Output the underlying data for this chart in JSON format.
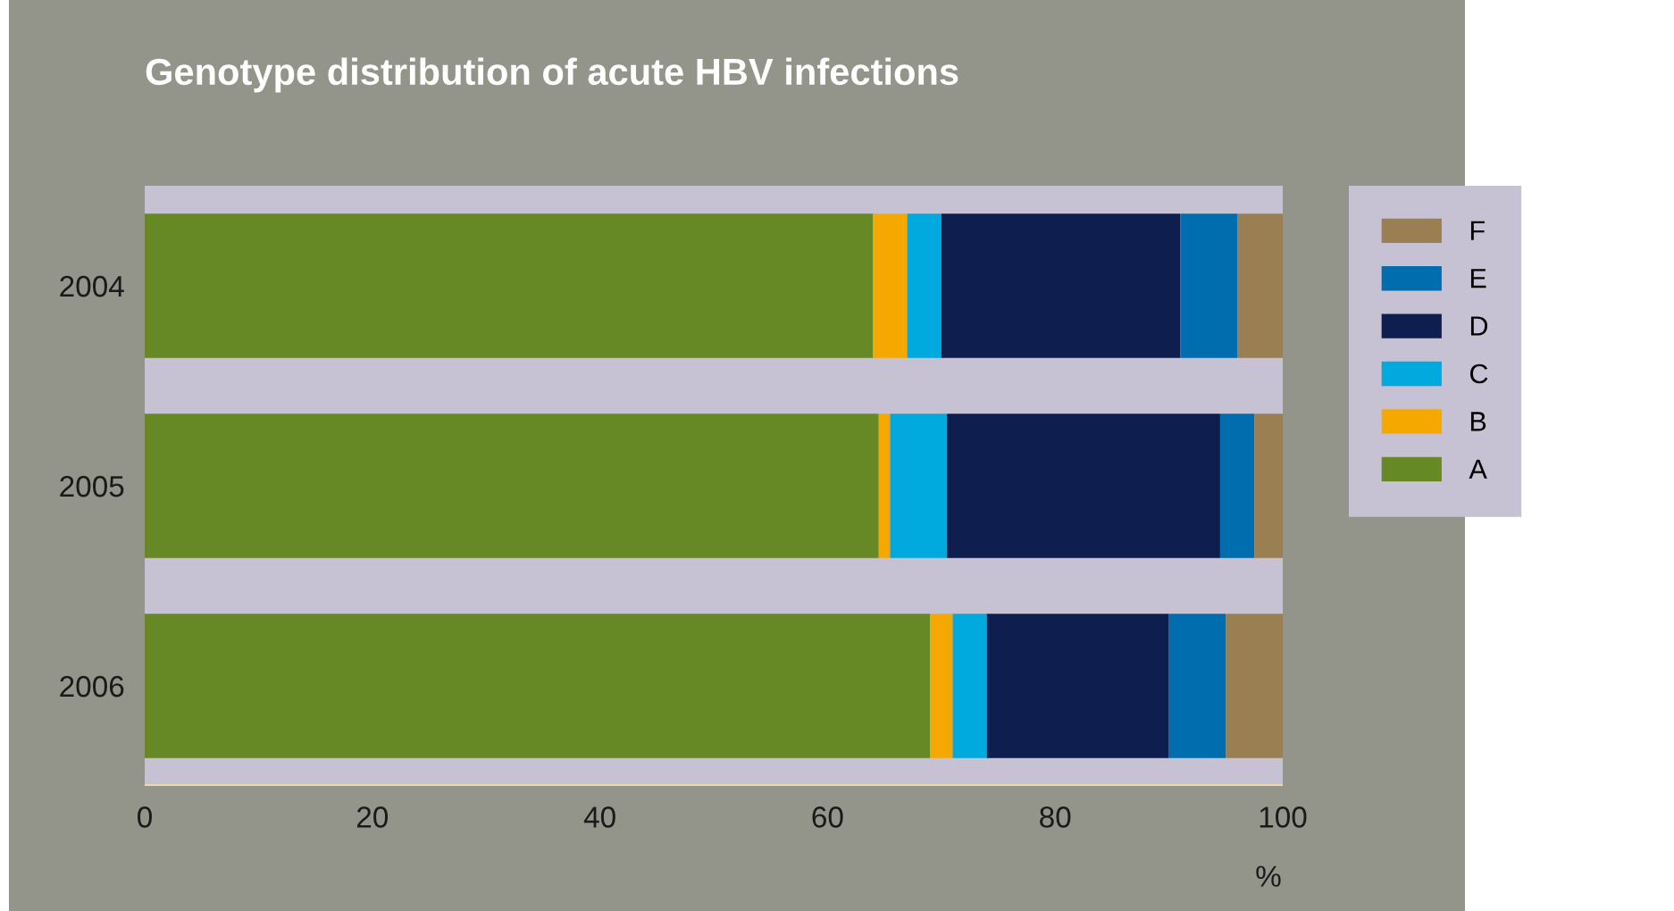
{
  "chart_data": {
    "type": "bar",
    "orientation": "horizontal",
    "stacked": true,
    "title": "Genotype distribution of acute HBV infections",
    "xlabel": "%",
    "categories": [
      "2004",
      "2005",
      "2006"
    ],
    "series": [
      {
        "name": "A",
        "color": "#668925",
        "values": [
          64,
          64.5,
          69
        ]
      },
      {
        "name": "B",
        "color": "#f5a800",
        "values": [
          3,
          1,
          2
        ]
      },
      {
        "name": "C",
        "color": "#00a9de",
        "values": [
          3,
          5,
          3
        ]
      },
      {
        "name": "D",
        "color": "#0e1e4f",
        "values": [
          21,
          24,
          16
        ]
      },
      {
        "name": "E",
        "color": "#006daf",
        "values": [
          5,
          3,
          5
        ]
      },
      {
        "name": "F",
        "color": "#9a7f52",
        "values": [
          4,
          2.5,
          5
        ]
      }
    ],
    "xlim": [
      0,
      100
    ],
    "xticks": [
      0,
      20,
      40,
      60,
      80,
      100
    ],
    "grid": false,
    "legend": "right"
  }
}
